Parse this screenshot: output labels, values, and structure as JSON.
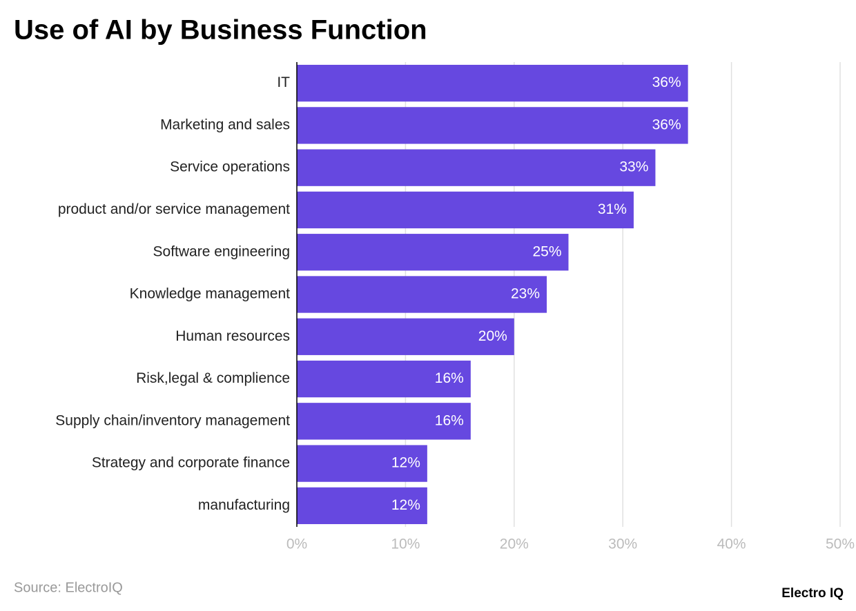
{
  "chart_data": {
    "type": "hbar",
    "title": "Use of AI by Business Function",
    "categories": [
      "IT",
      "Marketing and sales",
      "Service operations",
      "product and/or service management",
      "Software engineering",
      "Knowledge management",
      "Human resources",
      "Risk,legal & complience",
      "Supply chain/inventory management",
      "Strategy and corporate finance",
      "manufacturing"
    ],
    "values": [
      36,
      36,
      33,
      31,
      25,
      23,
      20,
      16,
      16,
      12,
      12
    ],
    "value_labels": [
      "36%",
      "36%",
      "33%",
      "31%",
      "25%",
      "23%",
      "20%",
      "16%",
      "16%",
      "12%",
      "12%"
    ],
    "color": "#6648e0",
    "xlim": [
      0,
      50
    ],
    "xticks": [
      {
        "value": 0,
        "label": "0%"
      },
      {
        "value": 10,
        "label": "10%"
      },
      {
        "value": 20,
        "label": "20%"
      },
      {
        "value": 30,
        "label": "30%"
      },
      {
        "value": 40,
        "label": "40%"
      },
      {
        "value": 50,
        "label": "50%"
      }
    ],
    "grid": true,
    "source": "Source: ElectroIQ",
    "logo": "Electro IQ"
  }
}
